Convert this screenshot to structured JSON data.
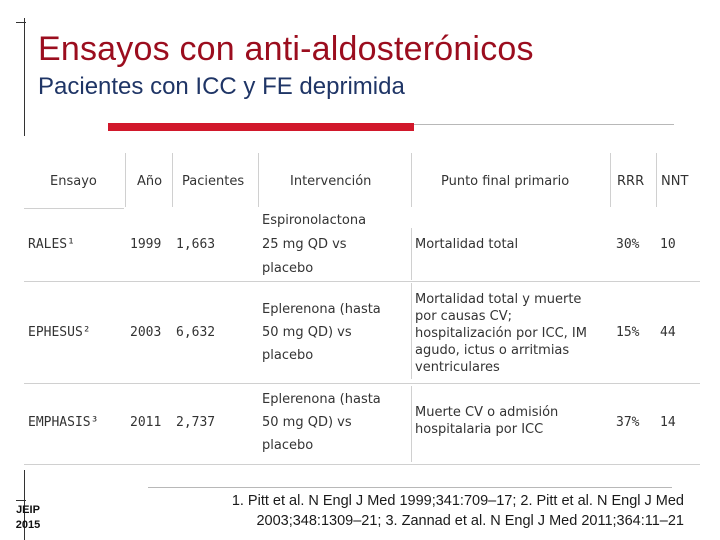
{
  "title": "Ensayos con anti-aldosterónicos",
  "subtitle": "Pacientes con ICC y FE deprimida",
  "table": {
    "headers": {
      "ensayo": "Ensayo",
      "anio": "Año",
      "pacientes": "Pacientes",
      "intervencion": "Intervención",
      "punto_final": "Punto final primario",
      "rrr": "RRR",
      "nnt": "NNT"
    },
    "rows": [
      {
        "ensayo": "RALES¹",
        "anio": "1999",
        "pacientes": "1,663",
        "intervencion": [
          "Espironolactona",
          "25 mg QD vs",
          "placebo"
        ],
        "punto_final": [
          "Mortalidad total"
        ],
        "rrr": "30%",
        "nnt": "10"
      },
      {
        "ensayo": "EPHESUS²",
        "anio": "2003",
        "pacientes": "6,632",
        "intervencion": [
          "Eplerenona (hasta",
          "50 mg QD) vs",
          "placebo"
        ],
        "punto_final": [
          "Mortalidad total y muerte",
          "por causas CV;",
          "hospitalización por ICC, IM",
          "agudo, ictus o arritmias",
          "ventriculares"
        ],
        "rrr": "15%",
        "nnt": "44"
      },
      {
        "ensayo": "EMPHASIS³",
        "anio": "2011",
        "pacientes": "2,737",
        "intervencion": [
          "Eplerenona (hasta",
          "50 mg QD) vs",
          "placebo"
        ],
        "punto_final": [
          "Muerte CV o admisión",
          "hospitalaria por ICC"
        ],
        "rrr": "37%",
        "nnt": "14"
      }
    ]
  },
  "references": {
    "line1": "1. Pitt et al. N Engl J Med 1999;341:709–17; 2. Pitt et al. N Engl J Med",
    "line2": "2003;348:1309–21; 3. Zannad et al. N Engl J Med 2011;364:11–21"
  },
  "footer": {
    "code_line1": "JEIP",
    "code_line2": "2015"
  },
  "colors": {
    "title": "#9b0d1e",
    "subtitle": "#1f3566",
    "accent_bar": "#d1182b"
  }
}
